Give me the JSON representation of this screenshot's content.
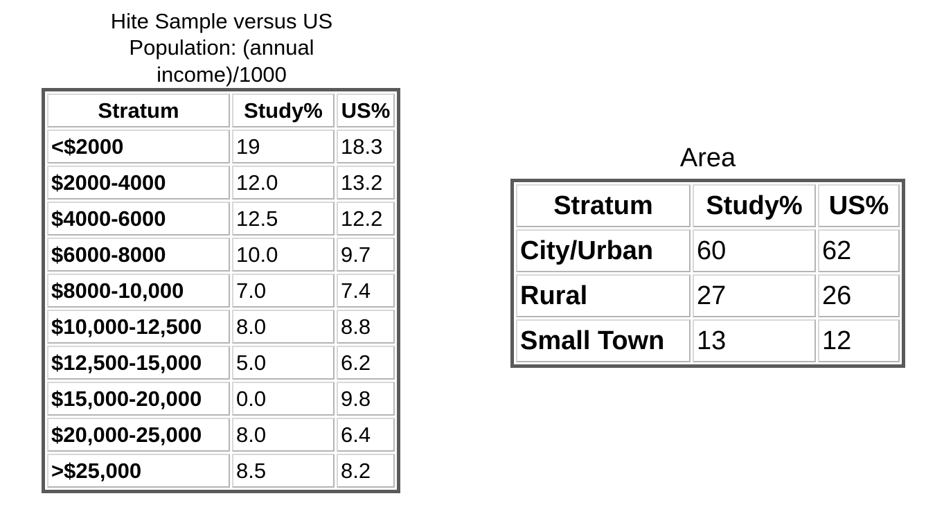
{
  "income_table": {
    "caption_lines": [
      "Hite Sample versus US",
      "Population: (annual",
      "income)/1000"
    ],
    "headers": [
      "Stratum",
      "Study%",
      "US%"
    ],
    "rows": [
      [
        "<$2000",
        "19",
        "18.3"
      ],
      [
        "$2000-4000",
        "12.0",
        "13.2"
      ],
      [
        "$4000-6000",
        "12.5",
        "12.2"
      ],
      [
        "$6000-8000",
        "10.0",
        "9.7"
      ],
      [
        "$8000-10,000",
        "7.0",
        "7.4"
      ],
      [
        "$10,000-12,500",
        "8.0",
        "8.8"
      ],
      [
        "$12,500-15,000",
        "5.0",
        "6.2"
      ],
      [
        "$15,000-20,000",
        "0.0",
        "9.8"
      ],
      [
        "$20,000-25,000",
        "8.0",
        "6.4"
      ],
      [
        ">$25,000",
        "8.5",
        "8.2"
      ]
    ]
  },
  "area_table": {
    "caption": "Area",
    "headers": [
      "Stratum",
      "Study%",
      "US%"
    ],
    "rows": [
      [
        "City/Urban",
        "60",
        "62"
      ],
      [
        "Rural",
        "27",
        "26"
      ],
      [
        "Small Town",
        "13",
        "12"
      ]
    ]
  }
}
